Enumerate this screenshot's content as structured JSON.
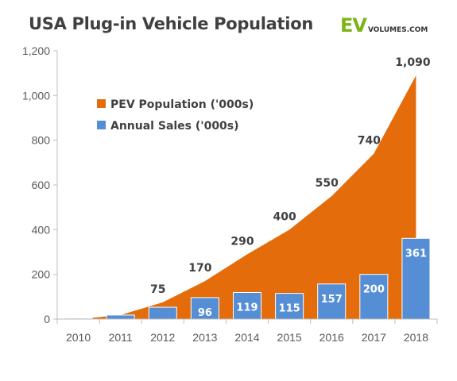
{
  "title": "USA Plug-in Vehicle Population",
  "logo": {
    "main": "EV",
    "sub": "VOLUMES.COM"
  },
  "colors": {
    "population": "#e46c0a",
    "sales": "#558ed5",
    "sales_border": "#ffffff",
    "grid": "#d9d9d9"
  },
  "chart_data": {
    "type": "area+bar",
    "categories": [
      "2010",
      "2011",
      "2012",
      "2013",
      "2014",
      "2015",
      "2016",
      "2017",
      "2018"
    ],
    "ylim": [
      0,
      1200
    ],
    "yticks": [
      0,
      200,
      400,
      600,
      800,
      1000,
      1200
    ],
    "ytick_labels": [
      "0",
      "200",
      "400",
      "600",
      "800",
      "1,000",
      "1,200"
    ],
    "grid": false,
    "legend_position": "top-left",
    "series": [
      {
        "name": "PEV Population ('000s)",
        "type": "area",
        "values": [
          0,
          18,
          75,
          170,
          290,
          400,
          550,
          740,
          1090
        ],
        "labels": [
          "",
          "",
          "75",
          "170",
          "290",
          "400",
          "550",
          "740",
          "1,090"
        ]
      },
      {
        "name": "Annual Sales ('000s)",
        "type": "bar",
        "values": [
          4,
          18,
          53,
          96,
          119,
          115,
          157,
          200,
          361
        ],
        "labels": [
          "",
          "",
          "",
          "96",
          "119",
          "115",
          "157",
          "200",
          "361"
        ]
      }
    ]
  }
}
